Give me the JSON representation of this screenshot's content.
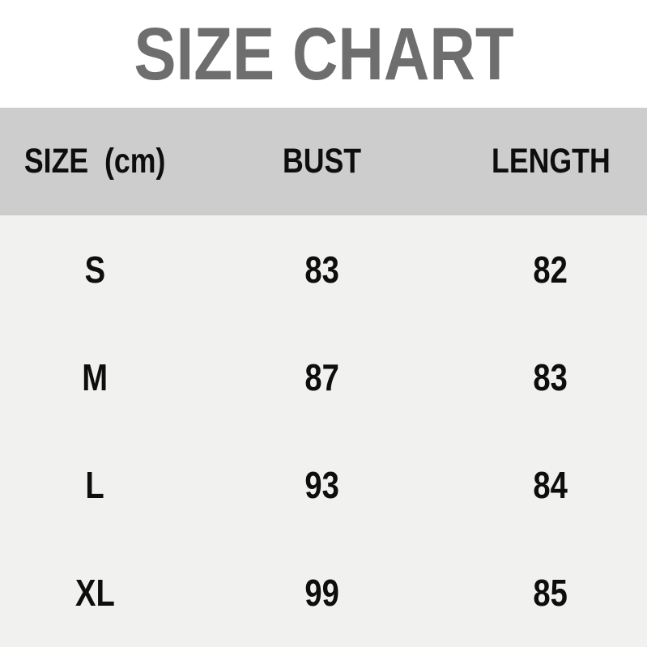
{
  "chart_data": {
    "type": "table",
    "title": "SIZE CHART",
    "unit_note": "(cm)",
    "columns": [
      "SIZE  (cm)",
      "BUST",
      "LENGTH"
    ],
    "rows": [
      {
        "size": "S",
        "bust": 83,
        "length": 82
      },
      {
        "size": "M",
        "bust": 87,
        "length": 83
      },
      {
        "size": "L",
        "bust": 93,
        "length": 84
      },
      {
        "size": "XL",
        "bust": 99,
        "length": 85
      }
    ]
  },
  "colors": {
    "title_text": "#6e6e6e",
    "header_background": "#cdcdcd",
    "body_background": "#f1f1f0",
    "cell_text": "#0e0e0e",
    "page_background": "#ffffff"
  }
}
